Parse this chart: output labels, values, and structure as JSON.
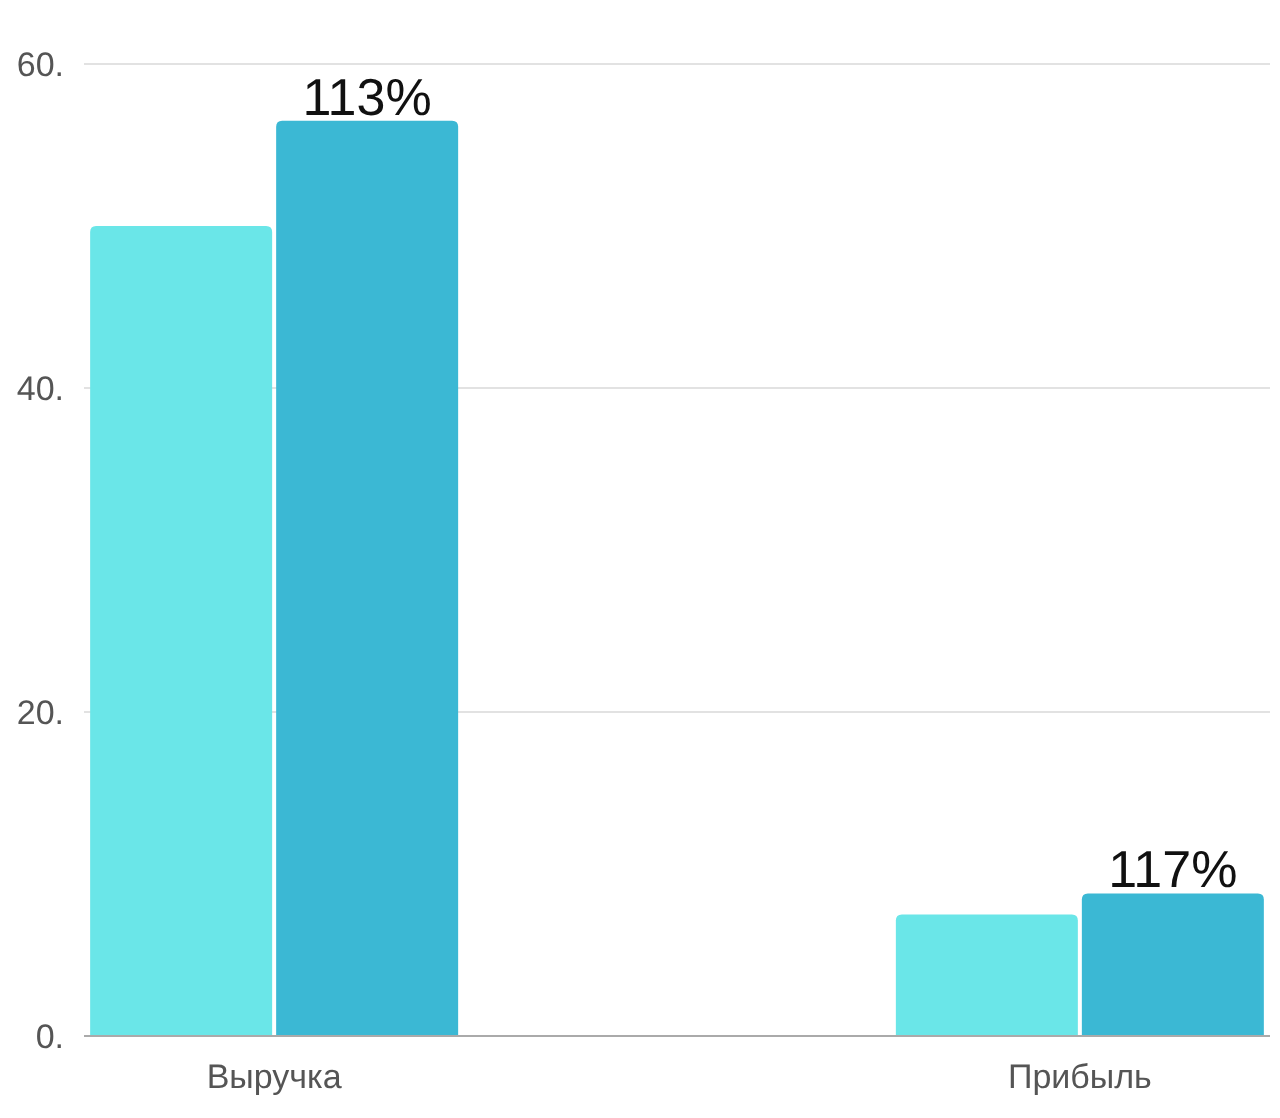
{
  "chart_data": {
    "type": "bar",
    "categories": [
      "Выручка",
      "Прибыль"
    ],
    "series": [
      {
        "color": "#6ae6e8",
        "values": [
          50,
          7.5
        ]
      },
      {
        "color": "#3bb8d4",
        "values": [
          56.5,
          8.8
        ]
      }
    ],
    "annotations": [
      {
        "text": "113%",
        "x": "Выручка",
        "y": 56.5
      },
      {
        "text": "117%",
        "x": "Прибыль",
        "y": 8.8
      }
    ],
    "ylim": [
      0,
      60
    ],
    "yticks": [
      {
        "value": 0,
        "label": "0."
      },
      {
        "value": 20,
        "label": "20."
      },
      {
        "value": 40,
        "label": "40."
      },
      {
        "value": 60,
        "label": "60."
      }
    ],
    "grid": "y"
  }
}
